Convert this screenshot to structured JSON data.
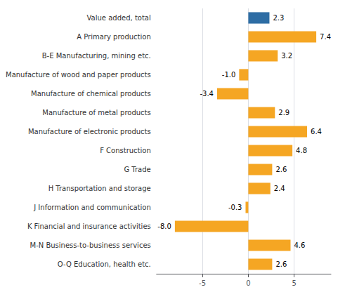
{
  "chart_data": {
    "type": "bar",
    "orientation": "horizontal",
    "categories": [
      "Value added, total",
      "A Primary production",
      "B-E Manufacturing, mining etc.",
      "Manufacture of wood and paper products",
      "Manufacture of chemical products",
      "Manufacture of metal products",
      "Manufacture of electronic products",
      "F Construction",
      "G Trade",
      "H Transportation and storage",
      "J Information and communication",
      "K Financial and insurance activities",
      "M-N Business-to-business services",
      "O-Q Education, health etc."
    ],
    "values": [
      2.3,
      7.4,
      3.2,
      -1.0,
      -3.4,
      2.9,
      6.4,
      4.8,
      2.6,
      2.4,
      -0.3,
      -8.0,
      4.6,
      2.6
    ],
    "value_labels": [
      "2.3",
      "7.4",
      "3.2",
      "-1.0",
      "-3.4",
      "2.9",
      "6.4",
      "4.8",
      "2.6",
      "2.4",
      "-0.3",
      "-8.0",
      "4.6",
      "2.6"
    ],
    "colors": [
      "#2e6da4",
      "#f5a623",
      "#f5a623",
      "#f5a623",
      "#f5a623",
      "#f5a623",
      "#f5a623",
      "#f5a623",
      "#f5a623",
      "#f5a623",
      "#f5a623",
      "#f5a623",
      "#f5a623",
      "#f5a623"
    ],
    "xlim": [
      -10,
      9
    ],
    "xticks": [
      -5,
      0,
      5
    ],
    "grid": true,
    "data_labels": true
  }
}
